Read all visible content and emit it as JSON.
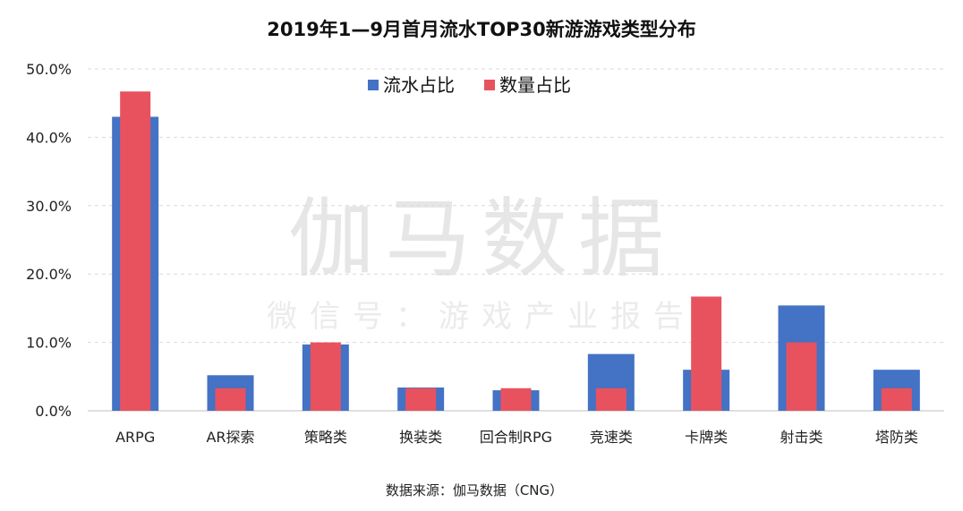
{
  "chart_data": {
    "type": "bar",
    "title": "2019年1—9月首月流水TOP30新游游戏类型分布",
    "categories": [
      "ARPG",
      "AR探索",
      "策略类",
      "换装类",
      "回合制RPG",
      "竞速类",
      "卡牌类",
      "射击类",
      "塔防类"
    ],
    "series": [
      {
        "name": "流水占比",
        "color": "#4472c4",
        "values": [
          43.0,
          5.2,
          9.7,
          3.4,
          3.0,
          8.3,
          6.0,
          15.4,
          6.0
        ]
      },
      {
        "name": "数量占比",
        "color": "#e8525f",
        "values": [
          46.7,
          3.3,
          10.0,
          3.3,
          3.3,
          3.3,
          16.7,
          10.0,
          3.3
        ]
      }
    ],
    "ylim": [
      0,
      50
    ],
    "yticks": [
      "0.0%",
      "10.0%",
      "20.0%",
      "30.0%",
      "40.0%",
      "50.0%"
    ],
    "grid": true,
    "legend_position": "top-center",
    "source": "数据来源：伽马数据（CNG）"
  },
  "watermark": {
    "main": "伽马数据",
    "sub": "微信号：游戏产业报告"
  }
}
